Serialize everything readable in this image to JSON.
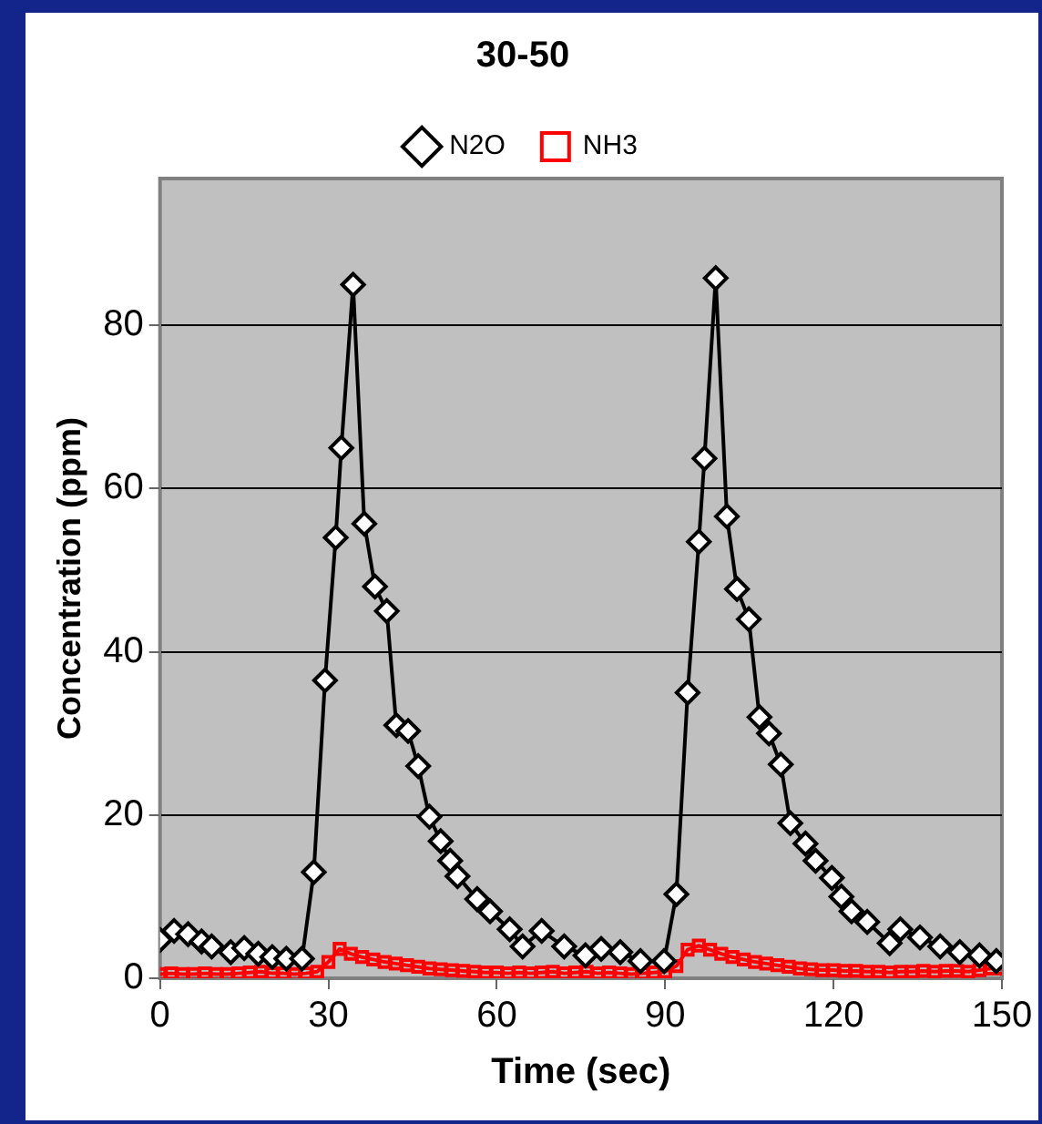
{
  "chart_data": {
    "type": "line",
    "title": "30-50",
    "xlabel": "Time (sec)",
    "ylabel": "Concentration (ppm)",
    "xlim": [
      0,
      150
    ],
    "xticks": [
      0,
      30,
      60,
      90,
      120,
      150
    ],
    "ylim": [
      0,
      98
    ],
    "yticks": [
      0,
      20,
      40,
      60,
      80
    ],
    "grid": "y",
    "legend": "top",
    "line_style": "solid",
    "series": [
      {
        "name": "N2O",
        "color": "#000000",
        "marker": "diamond",
        "x": [
          0,
          2.5,
          5,
          7.4,
          9.2,
          12.6,
          15,
          17.5,
          20,
          22.5,
          25.3,
          27.4,
          29.4,
          31.3,
          32.3,
          34.4,
          36.4,
          38.3,
          40.4,
          42.1,
          44.2,
          46,
          48,
          50,
          51.7,
          53,
          56.5,
          58.8,
          62.3,
          64.6,
          68,
          72,
          75.8,
          78.6,
          82,
          85.6,
          89.8,
          92,
          94,
          96,
          97,
          99,
          101,
          102.8,
          104.9,
          106.8,
          108.5,
          110.6,
          112.3,
          115,
          116.8,
          119.7,
          121.4,
          123.2,
          126,
          130,
          131.9,
          135.4,
          139,
          142.5,
          146,
          149
        ],
        "values": [
          4.7,
          5.8,
          5.4,
          4.5,
          3.9,
          3.2,
          3.7,
          3,
          2.6,
          2.4,
          2.4,
          13,
          36.5,
          54,
          65,
          85,
          55.7,
          48,
          45,
          31,
          30.3,
          26,
          19.8,
          16.8,
          14.4,
          12.5,
          9.7,
          8.2,
          6,
          3.9,
          5.8,
          3.9,
          2.8,
          3.6,
          3.2,
          2.1,
          2.1,
          10.3,
          35,
          53.5,
          63.7,
          85.8,
          56.6,
          47.7,
          44,
          32,
          30,
          26.2,
          19,
          16.5,
          14.4,
          12.3,
          10,
          8.2,
          6.9,
          4.3,
          6,
          5,
          3.9,
          3.2,
          2.8,
          2.1
        ]
      },
      {
        "name": "NH3",
        "color": "#ff0000",
        "marker": "square",
        "x": [
          0,
          2,
          4,
          6,
          8,
          10,
          12,
          14,
          16,
          18,
          20,
          22,
          24,
          26,
          28,
          30,
          32,
          34,
          36,
          38,
          40,
          42,
          44,
          46,
          48,
          50,
          52,
          54,
          56,
          58,
          60,
          62,
          64,
          66,
          68,
          70,
          72,
          74,
          76,
          78,
          80,
          82,
          84,
          86,
          88,
          90,
          92,
          94,
          96,
          98,
          100,
          102,
          104,
          106,
          108,
          110,
          112,
          114,
          116,
          118,
          120,
          122,
          124,
          126,
          128,
          130,
          132,
          134,
          136,
          138,
          140,
          142,
          144,
          146,
          148,
          150
        ],
        "values": [
          0.5,
          0.6,
          0.5,
          0.5,
          0.6,
          0.5,
          0.5,
          0.6,
          0.7,
          0.8,
          0.6,
          0.6,
          0.5,
          0.6,
          0.8,
          2,
          3.6,
          3,
          2.6,
          2.3,
          2,
          1.8,
          1.6,
          1.4,
          1.2,
          1.1,
          1,
          0.9,
          0.8,
          0.7,
          0.7,
          0.6,
          0.7,
          0.6,
          0.7,
          0.8,
          0.6,
          0.7,
          0.8,
          0.6,
          0.7,
          0.6,
          0.5,
          0.6,
          0.7,
          0.8,
          1.5,
          3.5,
          4,
          3.5,
          3,
          2.6,
          2.3,
          2,
          1.8,
          1.6,
          1.4,
          1.2,
          1.1,
          1,
          1,
          0.9,
          0.9,
          0.8,
          0.8,
          0.7,
          0.8,
          0.8,
          0.9,
          0.8,
          0.9,
          0.9,
          0.8,
          1,
          1.2,
          1.2
        ]
      }
    ]
  }
}
